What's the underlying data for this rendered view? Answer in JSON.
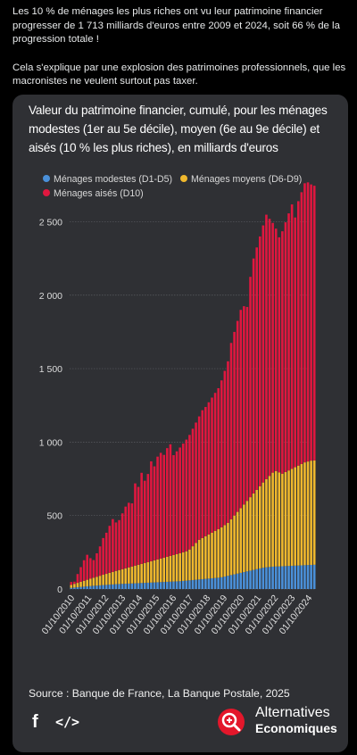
{
  "post": {
    "paragraph1": "Les 10 % de ménages les plus riches ont vu leur patrimoine financier progresser de 1 713 milliards d'euros entre 2009 et 2024, soit 66 % de la progression totale !",
    "paragraph2": "Cela s'explique par une explosion des patrimoines professionnels, que les macronistes ne veulent surtout pas taxer."
  },
  "card": {
    "source": "Source : Banque de France, La Banque Postale, 2025",
    "brand_line1": "Alternatives",
    "brand_line2": "Economiques",
    "facebook_icon": "f",
    "embed_icon": "</>"
  },
  "chart_data": {
    "type": "bar",
    "stacked": true,
    "title": "Valeur du patrimoine financier, cumulé, pour les ménages modestes (1er au 5e décile), moyen (6e au 9e décile) et aisés (10 % les plus riches), en milliards d'euros",
    "ylim": [
      0,
      2600
    ],
    "yticks": [
      "0",
      "500",
      "1 000",
      "1 500",
      "2 000",
      "2 500"
    ],
    "ytick_values": [
      0,
      500,
      1000,
      1500,
      2000,
      2500
    ],
    "xtick_labels": [
      "01/10/2010",
      "01/10/2011",
      "01/10/2012",
      "01/10/2013",
      "01/10/2014",
      "01/10/2015",
      "01/10/2016",
      "01/10/2017",
      "01/10/2018",
      "01/10/2019",
      "01/10/2020",
      "01/10/2021",
      "01/10/2022",
      "01/10/2023",
      "01/10/2024"
    ],
    "grid": true,
    "legend_position": "top",
    "colors": {
      "modestes": "#4a90d9",
      "moyens": "#f0b82d",
      "aises": "#e0173f"
    },
    "series": [
      {
        "name": "Ménages modestes (D1-D5)",
        "key": "modestes",
        "values": [
          8,
          10,
          12,
          14,
          16,
          18,
          20,
          22,
          23,
          25,
          27,
          28,
          30,
          31,
          33,
          34,
          35,
          36,
          37,
          38,
          39,
          40,
          41,
          42,
          43,
          44,
          45,
          46,
          47,
          48,
          49,
          50,
          51,
          52,
          53,
          55,
          57,
          59,
          61,
          63,
          65,
          67,
          69,
          71,
          73,
          75,
          77,
          80,
          85,
          90,
          95,
          100,
          105,
          110,
          115,
          120,
          125,
          130,
          135,
          140,
          145,
          148,
          150,
          152,
          153,
          154,
          155,
          156,
          157,
          158,
          159,
          160,
          161,
          162,
          163,
          164,
          165
        ]
      },
      {
        "name": "Ménages moyens (D6-D9)",
        "key": "moyens",
        "values": [
          20,
          25,
          30,
          35,
          40,
          45,
          50,
          55,
          60,
          65,
          70,
          75,
          80,
          85,
          90,
          95,
          100,
          105,
          110,
          115,
          120,
          125,
          130,
          135,
          140,
          145,
          150,
          155,
          160,
          165,
          170,
          175,
          180,
          185,
          190,
          195,
          200,
          210,
          230,
          250,
          270,
          280,
          290,
          300,
          310,
          320,
          330,
          340,
          350,
          360,
          380,
          400,
          420,
          440,
          460,
          480,
          500,
          520,
          540,
          560,
          580,
          600,
          620,
          640,
          650,
          640,
          630,
          640,
          650,
          660,
          670,
          680,
          690,
          700,
          705,
          710,
          710
        ]
      },
      {
        "name": "Ménages aisés (D10)",
        "key": "aises",
        "values": [
          20,
          15,
          60,
          100,
          140,
          170,
          140,
          120,
          160,
          200,
          250,
          280,
          320,
          360,
          330,
          340,
          380,
          420,
          440,
          430,
          560,
          530,
          620,
          560,
          600,
          680,
          640,
          700,
          720,
          700,
          740,
          760,
          680,
          700,
          720,
          740,
          760,
          780,
          800,
          820,
          840,
          870,
          880,
          900,
          920,
          940,
          960,
          1000,
          1050,
          1100,
          1200,
          1250,
          1300,
          1350,
          1350,
          1320,
          1500,
          1600,
          1650,
          1700,
          1750,
          1800,
          1750,
          1700,
          1650,
          1600,
          1650,
          1700,
          1750,
          1800,
          1700,
          1800,
          1850,
          1900,
          1900,
          1880,
          1870
        ]
      }
    ]
  }
}
